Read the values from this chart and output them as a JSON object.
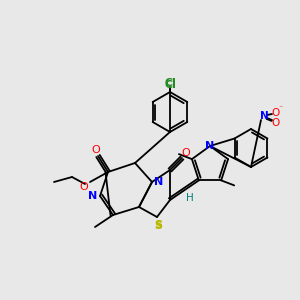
{
  "bg_color": "#e8e8e8",
  "fig_size": [
    3.0,
    3.0
  ],
  "dpi": 100,
  "lw": 1.3,
  "atom_colors": {
    "N": "#0000ff",
    "O": "#ff0000",
    "S": "#b8b800",
    "Cl": "#228B22",
    "H": "#008080",
    "C": "#000000"
  }
}
